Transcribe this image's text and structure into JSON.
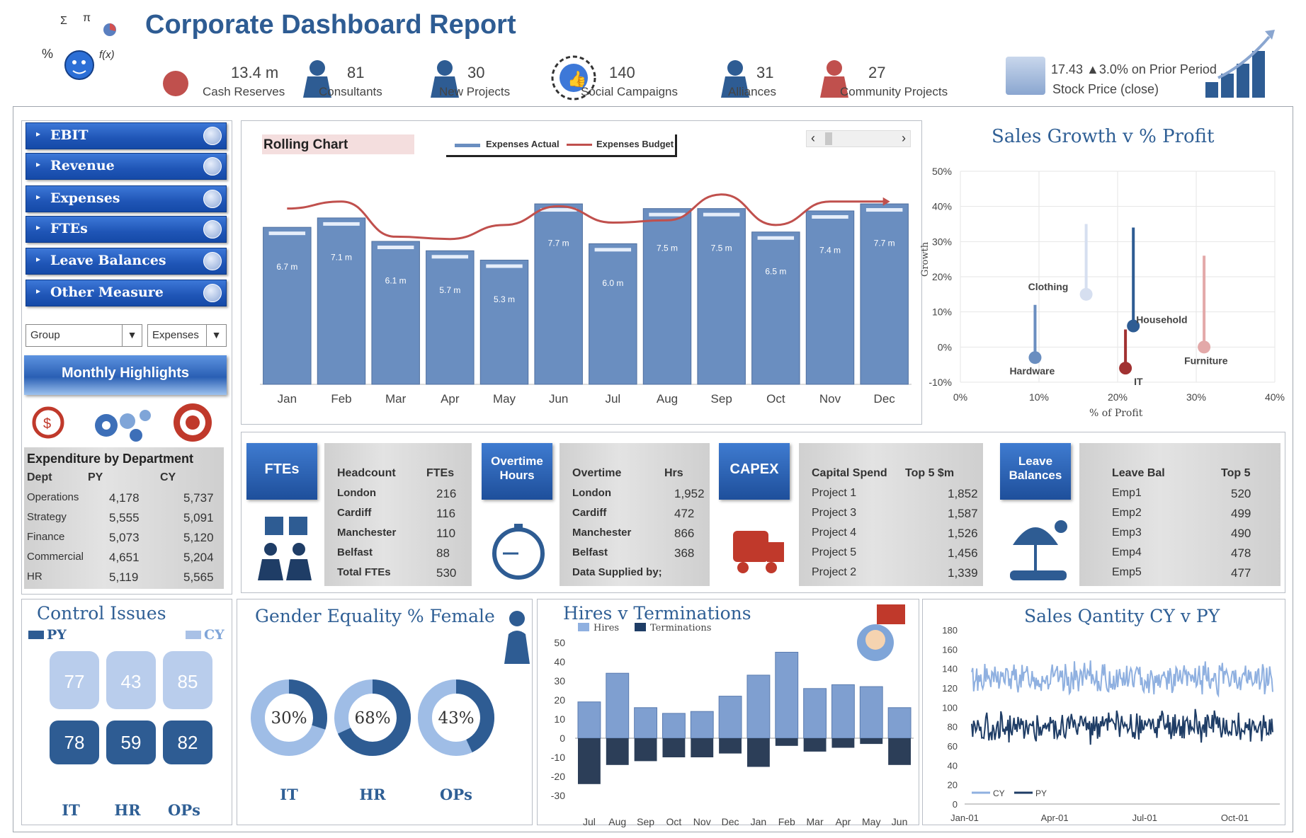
{
  "title": "Corporate Dashboard Report",
  "colors": {
    "accent": "#2e5c93",
    "bar": "#6a8ec0",
    "line": "#c0504d",
    "dark": "#1f3d66",
    "light": "#a9c1e6"
  },
  "kpis": [
    {
      "value": "13.4 m",
      "label": "Cash Reserves",
      "icon": "piggy-bank-icon"
    },
    {
      "value": "81",
      "label": "Consultants",
      "icon": "consultant-icon"
    },
    {
      "value": "30",
      "label": "New Projects",
      "icon": "idea-person-icon"
    },
    {
      "value": "140",
      "label": "Social Campaigns",
      "icon": "thumbs-up-icon"
    },
    {
      "value": "31",
      "label": "Alliances",
      "icon": "handshake-icon"
    },
    {
      "value": "27",
      "label": "Community Projects",
      "icon": "community-hands-icon"
    }
  ],
  "stock": {
    "line1": "17.43 ▲3.0% on Prior Period",
    "line2": "Stock Price (close)"
  },
  "logo_glyphs": {
    "sigma": "Σ",
    "pi": "π",
    "pct": "%",
    "fx": "f(x)"
  },
  "nav": [
    "EBIT",
    "Revenue",
    "Expenses",
    "FTEs",
    "Leave Balances",
    "Other Measure"
  ],
  "dropdowns": {
    "group": "Group",
    "measure": "Expenses"
  },
  "highlights_label": "Monthly Highlights",
  "expenditure": {
    "title": "Expenditure by Department",
    "headers": [
      "Dept",
      "PY",
      "CY"
    ],
    "rows": [
      [
        "Operations",
        "4,178",
        "5,737"
      ],
      [
        "Strategy",
        "5,555",
        "5,091"
      ],
      [
        "Finance",
        "5,073",
        "5,120"
      ],
      [
        "Commercial",
        "4,651",
        "5,204"
      ],
      [
        "HR",
        "5,119",
        "5,565"
      ]
    ]
  },
  "rolling": {
    "label": "Rolling Chart",
    "legend_actual": "Expenses Actual",
    "legend_budget": "Expenses Budget",
    "scroll_left": "‹",
    "scroll_right": "›"
  },
  "ftes_tile": "FTEs",
  "ftes_table": {
    "headers": [
      "Headcount",
      "FTEs"
    ],
    "rows": [
      [
        "London",
        "216"
      ],
      [
        "Cardiff",
        "116"
      ],
      [
        "Manchester",
        "110"
      ],
      [
        "Belfast",
        "88"
      ],
      [
        "Total FTEs",
        "530"
      ]
    ]
  },
  "overtime_tile": "Overtime Hours",
  "overtime_table": {
    "headers": [
      "Overtime",
      "Hrs"
    ],
    "rows": [
      [
        "London",
        "1,952"
      ],
      [
        "Cardiff",
        "472"
      ],
      [
        "Manchester",
        "866"
      ],
      [
        "Belfast",
        "368"
      ],
      [
        "Data Supplied by;",
        ""
      ]
    ]
  },
  "capex_tile": "CAPEX",
  "capex_table": {
    "headers": [
      "Capital Spend",
      "Top 5 $m"
    ],
    "rows": [
      [
        "Project 1",
        "1,852"
      ],
      [
        "Project 3",
        "1,587"
      ],
      [
        "Project 4",
        "1,526"
      ],
      [
        "Project 5",
        "1,456"
      ],
      [
        "Project 2",
        "1,339"
      ]
    ]
  },
  "leave_tile": "Leave Balances",
  "leave_table": {
    "headers": [
      "Leave Bal",
      "Top 5"
    ],
    "rows": [
      [
        "Emp1",
        "520"
      ],
      [
        "Emp2",
        "499"
      ],
      [
        "Emp3",
        "490"
      ],
      [
        "Emp4",
        "478"
      ],
      [
        "Emp5",
        "477"
      ]
    ]
  },
  "control": {
    "title": "Control Issues",
    "py_label": "PY",
    "cy_label": "CY",
    "depts": [
      "IT",
      "HR",
      "OPs"
    ],
    "py": [
      78,
      59,
      82
    ],
    "cy": [
      77,
      43,
      85
    ]
  },
  "gender": {
    "title": "Gender Equality % Female",
    "depts": [
      "IT",
      "HR",
      "OPs"
    ],
    "values": [
      "30%",
      "68%",
      "43%"
    ],
    "fractions": [
      0.3,
      0.68,
      0.43
    ]
  },
  "chart_data": [
    {
      "type": "bar",
      "title": "Rolling Chart",
      "categories": [
        "Jan",
        "Feb",
        "Mar",
        "Apr",
        "May",
        "Jun",
        "Jul",
        "Aug",
        "Sep",
        "Oct",
        "Nov",
        "Dec"
      ],
      "series": [
        {
          "name": "Expenses Actual",
          "values": [
            6.7,
            7.1,
            6.1,
            5.7,
            5.3,
            7.7,
            6.0,
            7.5,
            7.5,
            6.5,
            7.4,
            7.7
          ],
          "labels": [
            "6.7 m",
            "7.1 m",
            "6.1 m",
            "5.7 m",
            "5.3 m",
            "7.7 m",
            "6.0 m",
            "7.5 m",
            "7.5 m",
            "6.5 m",
            "7.4 m",
            "7.7 m"
          ]
        },
        {
          "name": "Expenses Budget",
          "type": "line",
          "values": [
            7.5,
            7.8,
            6.3,
            6.2,
            6.8,
            7.6,
            6.9,
            7.0,
            8.1,
            6.8,
            7.8,
            7.8
          ]
        }
      ],
      "ylim": [
        0,
        9
      ]
    },
    {
      "type": "scatter",
      "title": "Sales Growth v % Profit",
      "xlabel": "% of Profit",
      "ylabel": "Growth",
      "xlim": [
        0,
        40
      ],
      "ylim": [
        -10,
        50
      ],
      "xticks": [
        "0%",
        "10%",
        "20%",
        "30%",
        "40%"
      ],
      "yticks": [
        "-10%",
        "0%",
        "10%",
        "20%",
        "30%",
        "40%",
        "50%"
      ],
      "points": [
        {
          "name": "Hardware",
          "x": 9.5,
          "y": -3,
          "y_end": 12,
          "color": "#6a8ec0"
        },
        {
          "name": "Clothing",
          "x": 16,
          "y": 15,
          "y_end": 35,
          "color": "#d6dff0"
        },
        {
          "name": "Household",
          "x": 22,
          "y": 6,
          "y_end": 34,
          "color": "#2e5c93"
        },
        {
          "name": "IT",
          "x": 21,
          "y": -6,
          "y_end": 5,
          "color": "#a13232"
        },
        {
          "name": "Furniture",
          "x": 31,
          "y": 0,
          "y_end": 26,
          "color": "#e3a9a9"
        }
      ]
    },
    {
      "type": "bar",
      "title": "Hires v Terminations",
      "categories": [
        "Jul",
        "Aug",
        "Sep",
        "Oct",
        "Nov",
        "Dec",
        "Jan",
        "Feb",
        "Mar",
        "Apr",
        "May",
        "Jun"
      ],
      "series": [
        {
          "name": "Hires",
          "values": [
            19,
            34,
            16,
            13,
            14,
            22,
            33,
            45,
            26,
            28,
            27,
            16
          ]
        },
        {
          "name": "Terminations",
          "values": [
            -24,
            -14,
            -12,
            -10,
            -10,
            -8,
            -15,
            -4,
            -7,
            -5,
            -3,
            -14
          ]
        }
      ],
      "ylim": [
        -30,
        50
      ],
      "yticks": [
        "-30",
        "-20",
        "-10",
        "0",
        "10",
        "20",
        "30",
        "40",
        "50"
      ]
    },
    {
      "type": "line",
      "title": "Sales Qantity CY v PY",
      "x_ticks": [
        "Jan-01",
        "Apr-01",
        "Jul-01",
        "Oct-01"
      ],
      "ylim": [
        0,
        180
      ],
      "yticks": [
        "0",
        "20",
        "40",
        "60",
        "80",
        "100",
        "120",
        "140",
        "160",
        "180"
      ],
      "series": [
        {
          "name": "CY",
          "level": 130,
          "amplitude": 12
        },
        {
          "name": "PY",
          "level": 80,
          "amplitude": 12
        }
      ]
    }
  ]
}
